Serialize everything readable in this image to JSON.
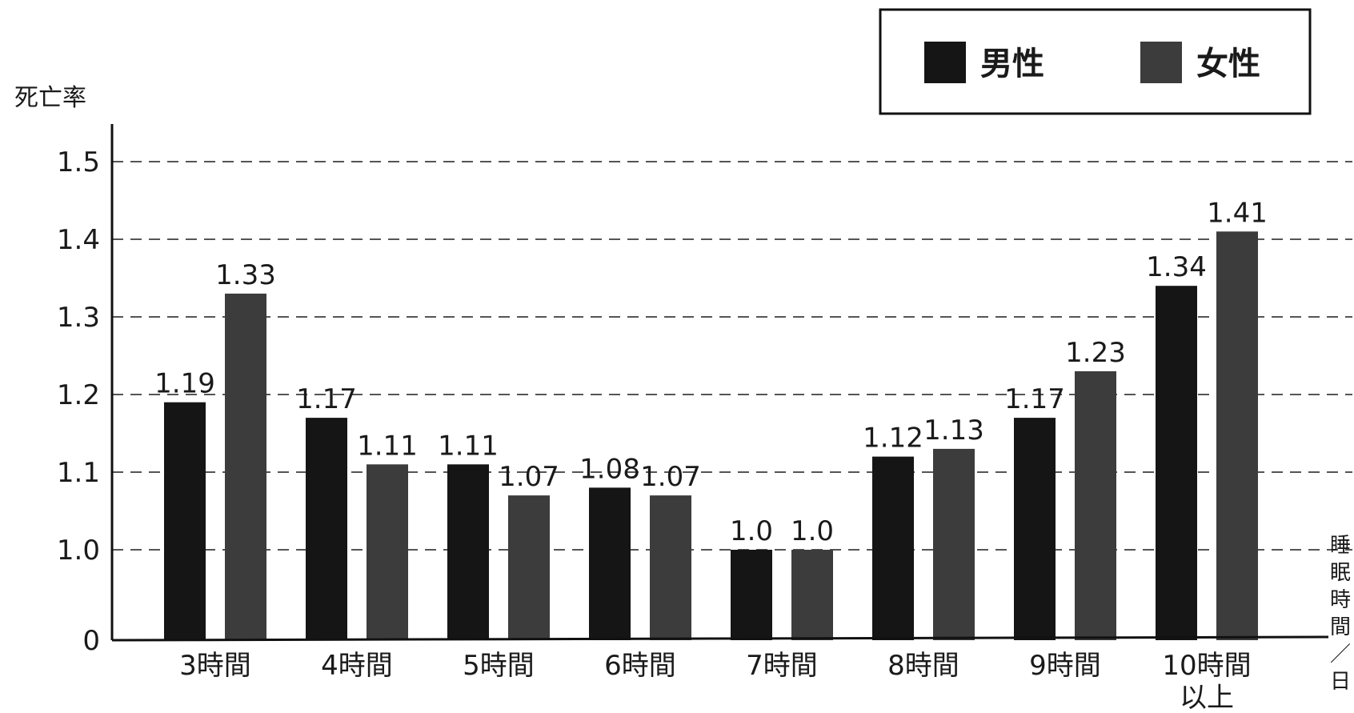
{
  "chart_data": {
    "type": "bar",
    "ylabel": "死亡率",
    "xlabel": "睡眠時間／日",
    "categories": [
      [
        "3時間"
      ],
      [
        "4時間"
      ],
      [
        "5時間"
      ],
      [
        "6時間"
      ],
      [
        "7時間"
      ],
      [
        "8時間"
      ],
      [
        "9時間"
      ],
      [
        "10時間",
        "以上"
      ]
    ],
    "yticks": [
      "0",
      "1.0",
      "1.1",
      "1.2",
      "1.3",
      "1.4",
      "1.5"
    ],
    "ylim": [
      0.9,
      1.5
    ],
    "axis_break": "0 to 1.0 compressed",
    "grid": "dashed horizontal",
    "legend_position": "top-right",
    "series": [
      {
        "name": "男性",
        "color": "#151515",
        "values": [
          1.19,
          1.17,
          1.11,
          1.08,
          1.0,
          1.12,
          1.17,
          1.34
        ],
        "labels": [
          "1.19",
          "1.17",
          "1.11",
          "1.08",
          "1.0",
          "1.12",
          "1.17",
          "1.34"
        ]
      },
      {
        "name": "女性",
        "color": "#3c3c3c",
        "values": [
          1.33,
          1.11,
          1.07,
          1.07,
          1.0,
          1.13,
          1.23,
          1.41
        ],
        "labels": [
          "1.33",
          "1.11",
          "1.07",
          "1.07",
          "1.0",
          "1.13",
          "1.23",
          "1.41"
        ]
      }
    ]
  }
}
